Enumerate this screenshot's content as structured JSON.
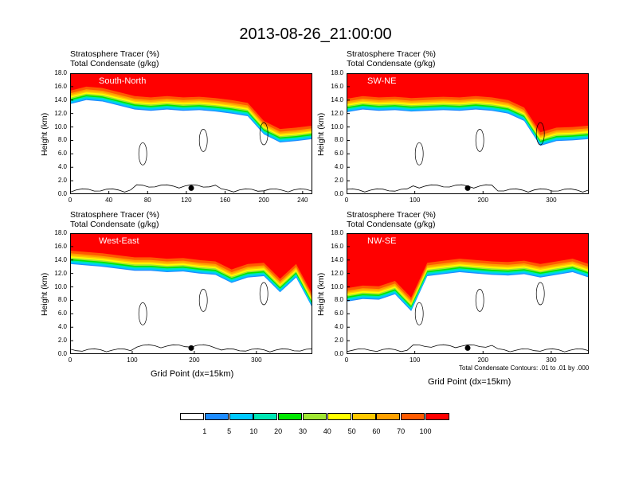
{
  "title": "2013-08-26_21:00:00",
  "panel_line1": "Stratosphere Tracer   (%)",
  "panel_line2": "Total Condensate   (g/kg)",
  "ylabel": "Height (km)",
  "xlabel": "Grid Point (dx=15km)",
  "contour_note": "Total Condensate Contours: .01 to .01 by .000",
  "y_ticks": [
    "0.0",
    "2.0",
    "4.0",
    "6.0",
    "8.0",
    "10.0",
    "12.0",
    "14.0",
    "16.0",
    "18.0"
  ],
  "panels": [
    {
      "name": "South-North",
      "x_ticks": [
        "0",
        "40",
        "80",
        "120",
        "160",
        "200",
        "240"
      ],
      "x_max": 250
    },
    {
      "name": "SW-NE",
      "x_ticks": [
        "0",
        "100",
        "200",
        "300"
      ],
      "x_max": 355
    },
    {
      "name": "West-East",
      "x_ticks": [
        "0",
        "100",
        "200",
        "300"
      ],
      "x_max": 390
    },
    {
      "name": "NW-SE",
      "x_ticks": [
        "0",
        "100",
        "200",
        "300"
      ],
      "x_max": 355
    }
  ],
  "colorbar": {
    "labels": [
      "1",
      "5",
      "10",
      "20",
      "30",
      "40",
      "50",
      "60",
      "70",
      "100"
    ],
    "colors": [
      "#ffffff",
      "#1e8cff",
      "#00c8ff",
      "#00e6b4",
      "#00e600",
      "#a0e632",
      "#ffff00",
      "#ffc800",
      "#ffa000",
      "#ff5a00",
      "#ff0000"
    ]
  },
  "chart_data": [
    {
      "type": "heatmap",
      "title": "South-North",
      "x_range": [
        0,
        250
      ],
      "ylim": [
        0,
        18
      ],
      "xlabel": "",
      "ylabel": "Height (km)",
      "tropopause_km": [
        15.0,
        15.6,
        15.4,
        14.8,
        14.2,
        14.0,
        14.2,
        14.0,
        14.1,
        13.9,
        13.6,
        13.2,
        10.5,
        9.3,
        9.5,
        9.8
      ]
    },
    {
      "type": "heatmap",
      "title": "SW-NE",
      "x_range": [
        0,
        355
      ],
      "ylim": [
        0,
        18
      ],
      "xlabel": "",
      "ylabel": "Height (km)",
      "tropopause_km": [
        13.8,
        14.2,
        14.0,
        14.1,
        13.9,
        14.0,
        14.1,
        14.0,
        14.2,
        14.0,
        13.6,
        12.5,
        8.8,
        9.5,
        9.6,
        9.8
      ]
    },
    {
      "type": "heatmap",
      "title": "West-East",
      "x_range": [
        0,
        390
      ],
      "ylim": [
        0,
        18
      ],
      "xlabel": "Grid Point (dx=15km)",
      "ylabel": "Height (km)",
      "tropopause_km": [
        15.0,
        14.8,
        14.6,
        14.3,
        14.0,
        14.0,
        13.8,
        13.9,
        13.6,
        13.4,
        12.2,
        13.0,
        13.2,
        10.8,
        13.0,
        8.5
      ]
    },
    {
      "type": "heatmap",
      "title": "NW-SE",
      "x_range": [
        0,
        355
      ],
      "ylim": [
        0,
        18
      ],
      "xlabel": "Grid Point (dx=15km)",
      "ylabel": "Height (km)",
      "tropopause_km": [
        9.4,
        9.8,
        9.7,
        10.5,
        8.0,
        13.2,
        13.5,
        13.8,
        13.6,
        13.4,
        13.3,
        13.5,
        13.0,
        13.4,
        13.8,
        13.0
      ]
    }
  ]
}
